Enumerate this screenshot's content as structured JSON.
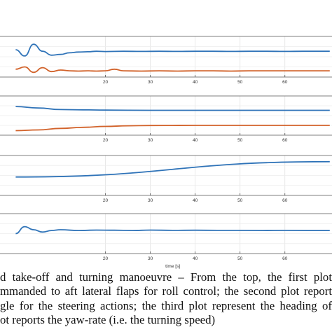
{
  "chart_data": [
    {
      "type": "line",
      "x_ticks": [
        20,
        30,
        40,
        50,
        60
      ],
      "xlabel": "",
      "grid": true,
      "series": [
        {
          "color": "#2f73b8",
          "x": [
            0,
            2,
            4,
            6,
            8,
            10,
            12,
            14,
            16,
            18,
            20,
            24,
            28,
            32,
            36,
            40,
            44,
            48,
            52,
            56,
            60,
            64,
            68,
            70
          ],
          "y": [
            0.55,
            0.15,
            0.9,
            0.45,
            0.2,
            0.25,
            0.35,
            0.4,
            0.42,
            0.45,
            0.43,
            0.45,
            0.44,
            0.45,
            0.44,
            0.45,
            0.45,
            0.44,
            0.45,
            0.45,
            0.44,
            0.45,
            0.45,
            0.45
          ]
        },
        {
          "color": "#d2622a",
          "x": [
            0,
            2,
            4,
            6,
            8,
            10,
            12,
            14,
            16,
            18,
            20,
            22,
            24,
            28,
            32,
            36,
            40,
            44,
            48,
            52,
            56,
            60,
            64,
            68,
            70
          ],
          "y": [
            -0.7,
            -0.55,
            -0.9,
            -0.6,
            -0.85,
            -0.75,
            -0.8,
            -0.82,
            -0.8,
            -0.82,
            -0.8,
            -0.7,
            -0.8,
            -0.82,
            -0.8,
            -0.82,
            -0.8,
            -0.8,
            -0.82,
            -0.8,
            -0.8,
            -0.8,
            -0.8,
            -0.8,
            -0.8
          ]
        }
      ]
    },
    {
      "type": "line",
      "x_ticks": [
        20,
        30,
        40,
        50,
        60
      ],
      "xlabel": "",
      "grid": true,
      "series": [
        {
          "color": "#2f73b8",
          "x": [
            0,
            5,
            10,
            15,
            20,
            30,
            40,
            50,
            60,
            70
          ],
          "y": [
            0.7,
            0.6,
            0.5,
            0.48,
            0.46,
            0.45,
            0.45,
            0.45,
            0.45,
            0.45
          ]
        },
        {
          "color": "#d2622a",
          "x": [
            0,
            5,
            10,
            15,
            20,
            25,
            30,
            40,
            50,
            60,
            70
          ],
          "y": [
            -0.9,
            -0.85,
            -0.75,
            -0.68,
            -0.62,
            -0.58,
            -0.56,
            -0.55,
            -0.55,
            -0.55,
            -0.55
          ]
        }
      ]
    },
    {
      "type": "line",
      "x_ticks": [
        20,
        30,
        40,
        50,
        60
      ],
      "xlabel": "",
      "grid": true,
      "series": [
        {
          "color": "#2f73b8",
          "x": [
            0,
            70
          ],
          "y": [
            0.0,
            1.0
          ]
        }
      ]
    },
    {
      "type": "line",
      "x_ticks": [
        20,
        30,
        40,
        50,
        60
      ],
      "xlabel": "time [s]",
      "grid": true,
      "series": [
        {
          "color": "#2f73b8",
          "x": [
            0,
            2,
            4,
            6,
            8,
            10,
            14,
            18,
            22,
            26,
            30,
            35,
            40,
            45,
            50,
            55,
            60,
            65,
            70
          ],
          "y": [
            0.1,
            0.55,
            0.35,
            0.2,
            0.3,
            0.35,
            0.3,
            0.33,
            0.32,
            0.3,
            0.33,
            0.31,
            0.32,
            0.31,
            0.31,
            0.3,
            0.31,
            0.3,
            0.3
          ]
        }
      ]
    }
  ],
  "caption": {
    "lines": [
      "d take-off and turning manoeuvre – From the top, the first plot",
      "mmanded to aft lateral flaps for roll control; the second plot report",
      "gle for the steering actions; the third plot represent the heading of",
      "ot reports the yaw-rate (i.e. the turning speed)"
    ]
  }
}
